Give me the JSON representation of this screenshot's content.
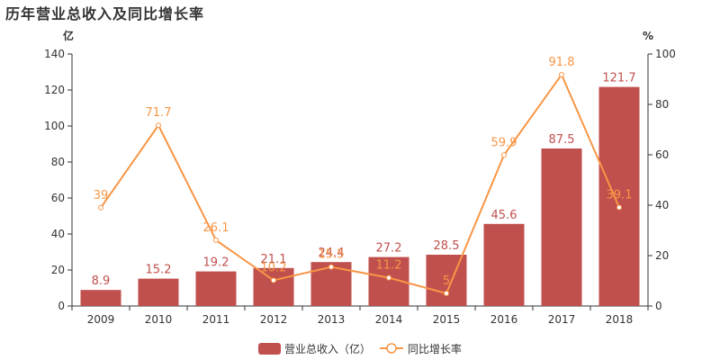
{
  "chart_data": {
    "type": "bar",
    "title": "历年营业总收入及同比增长率",
    "categories": [
      "2009",
      "2010",
      "2011",
      "2012",
      "2013",
      "2014",
      "2015",
      "2016",
      "2017",
      "2018"
    ],
    "series": [
      {
        "name": "营业总收入（亿）",
        "type": "bar",
        "axis": "left",
        "color": "#c0504d",
        "values": [
          8.9,
          15.2,
          19.2,
          21.1,
          24.4,
          27.2,
          28.5,
          45.6,
          87.5,
          121.7
        ]
      },
      {
        "name": "同比增长率",
        "type": "line",
        "axis": "right",
        "color": "#f79646",
        "values": [
          39,
          71.7,
          26.1,
          10.2,
          15.5,
          11.2,
          5,
          59.9,
          91.8,
          39.1
        ]
      }
    ],
    "y_left": {
      "unit": "亿",
      "min": 0,
      "max": 140,
      "ticks": [
        0,
        20,
        40,
        60,
        80,
        100,
        120,
        140
      ]
    },
    "y_right": {
      "unit": "%",
      "min": 0,
      "max": 100,
      "ticks": [
        0,
        20,
        40,
        60,
        80,
        100
      ]
    },
    "grid": false,
    "legend_position": "bottom"
  }
}
